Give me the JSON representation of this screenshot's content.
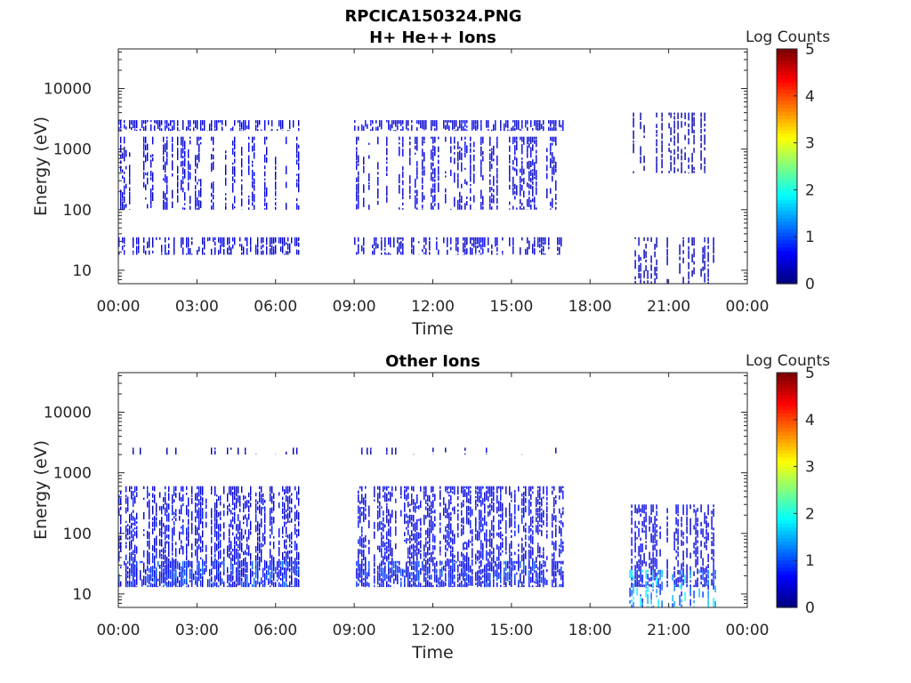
{
  "figure_title": "RPCICA150324.PNG",
  "chart_data": [
    {
      "type": "heatmap",
      "title": "H+ He++ Ions",
      "xlabel": "Time",
      "ylabel": "Energy (eV)",
      "xticks": [
        "00:00",
        "03:00",
        "06:00",
        "09:00",
        "12:00",
        "15:00",
        "18:00",
        "21:00",
        "00:00"
      ],
      "xlim_hours": [
        0,
        24
      ],
      "yscale": "log",
      "ylim": [
        6,
        45000
      ],
      "yticks": [
        10,
        100,
        1000,
        10000
      ],
      "ytick_labels": [
        "10",
        "100",
        "1000",
        "10000"
      ],
      "colorbar": {
        "label": "Log Counts",
        "range": [
          0,
          5
        ],
        "ticks": [
          "0",
          "1",
          "2",
          "3",
          "4",
          "5"
        ],
        "colormap": "jet"
      },
      "data_segments_hours": [
        [
          0.0,
          6.9
        ],
        [
          9.0,
          17.0
        ],
        [
          19.5,
          22.8
        ]
      ],
      "bands": [
        {
          "t": [
            0.0,
            6.9
          ],
          "e": [
            2000,
            3000
          ],
          "level": 0.55,
          "density": 0.85
        },
        {
          "t": [
            0.0,
            6.9
          ],
          "e": [
            100,
            1600
          ],
          "level": 0.55,
          "density": 0.45
        },
        {
          "t": [
            0.0,
            6.9
          ],
          "e": [
            18,
            35
          ],
          "level": 0.5,
          "density": 0.7
        },
        {
          "t": [
            9.0,
            17.0
          ],
          "e": [
            2000,
            3000
          ],
          "level": 0.55,
          "density": 0.85
        },
        {
          "t": [
            9.0,
            17.0
          ],
          "e": [
            100,
            1600
          ],
          "level": 0.5,
          "density": 0.5
        },
        {
          "t": [
            9.0,
            17.0
          ],
          "e": [
            18,
            35
          ],
          "level": 0.5,
          "density": 0.55
        },
        {
          "t": [
            19.5,
            22.8
          ],
          "e": [
            400,
            4000
          ],
          "level": 0.25,
          "density": 0.35
        },
        {
          "t": [
            19.5,
            22.8
          ],
          "e": [
            6,
            35
          ],
          "level": 0.3,
          "density": 0.35
        }
      ]
    },
    {
      "type": "heatmap",
      "title": "Other Ions",
      "xlabel": "Time",
      "ylabel": "Energy (eV)",
      "xticks": [
        "00:00",
        "03:00",
        "06:00",
        "09:00",
        "12:00",
        "15:00",
        "18:00",
        "21:00",
        "00:00"
      ],
      "xlim_hours": [
        0,
        24
      ],
      "yscale": "log",
      "ylim": [
        6,
        45000
      ],
      "yticks": [
        10,
        100,
        1000,
        10000
      ],
      "ytick_labels": [
        "10",
        "100",
        "1000",
        "10000"
      ],
      "colorbar": {
        "label": "Log Counts",
        "range": [
          0,
          5
        ],
        "ticks": [
          "0",
          "1",
          "2",
          "3",
          "4",
          "5"
        ],
        "colormap": "jet"
      },
      "data_segments_hours": [
        [
          0.0,
          6.9
        ],
        [
          9.0,
          17.0
        ],
        [
          19.5,
          22.8
        ]
      ],
      "bands": [
        {
          "t": [
            0.0,
            6.9
          ],
          "e": [
            13,
            600
          ],
          "level": 0.6,
          "density": 0.75
        },
        {
          "t": [
            0.0,
            6.9
          ],
          "e": [
            13,
            35
          ],
          "level": 0.9,
          "density": 0.8
        },
        {
          "t": [
            0.0,
            6.9
          ],
          "e": [
            2000,
            2600
          ],
          "level": 0.3,
          "density": 0.15
        },
        {
          "t": [
            9.0,
            17.0
          ],
          "e": [
            13,
            600
          ],
          "level": 0.6,
          "density": 0.75
        },
        {
          "t": [
            9.0,
            17.0
          ],
          "e": [
            13,
            35
          ],
          "level": 0.85,
          "density": 0.8
        },
        {
          "t": [
            9.0,
            17.0
          ],
          "e": [
            2000,
            2600
          ],
          "level": 0.3,
          "density": 0.15
        },
        {
          "t": [
            19.5,
            22.8
          ],
          "e": [
            13,
            300
          ],
          "level": 0.55,
          "density": 0.6
        },
        {
          "t": [
            19.5,
            22.8
          ],
          "e": [
            6,
            25
          ],
          "level": 1.5,
          "density": 0.5
        }
      ]
    }
  ]
}
